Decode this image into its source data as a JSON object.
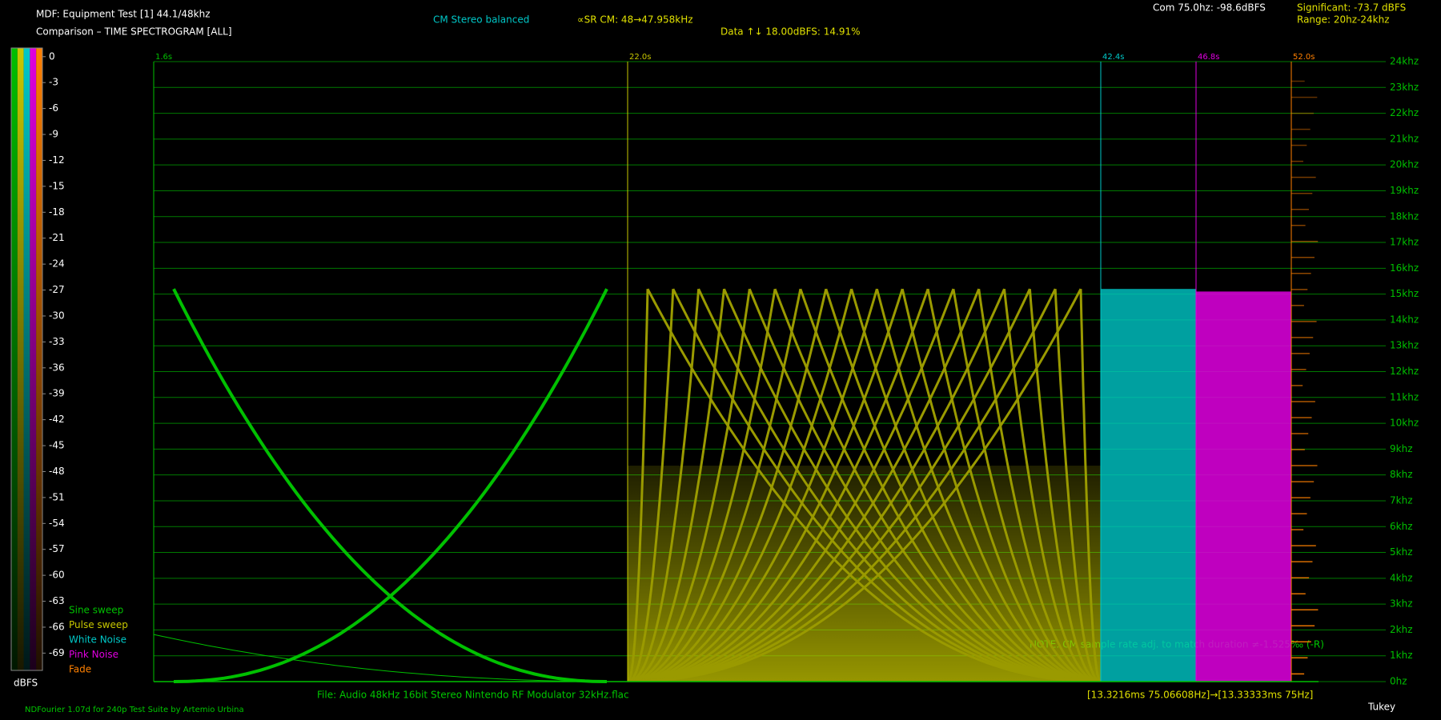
{
  "chart_data": {
    "type": "spectrogram",
    "title": "MDF: Equipment Test [1] 44.1/48khz",
    "subtitle": "Comparison – TIME SPECTROGRAM [ALL]",
    "annotations": [
      {
        "text": "CM Stereo balanced",
        "color": "#00c8c8"
      },
      {
        "text": "∝SR CM: 48→47.958kHz",
        "color": "#e0e000"
      },
      {
        "text": "Data ↑↓ 18.00dBFS: 14.91%",
        "color": "#e0e000"
      },
      {
        "text": "Com 75.0hz: -98.6dBFS",
        "color": "#ffffff"
      },
      {
        "text": "Significant: -73.7 dBFS",
        "color": "#e0e000"
      },
      {
        "text": "Range: 20hz-24khz",
        "color": "#e0e000"
      },
      {
        "text": "NOTE: CM sample rate adj. to match duration ≠-1.525‰ (-R)",
        "color": "#00c800"
      },
      {
        "text": "File: Audio   48kHz 16bit Stereo Nintendo RF Modulator 32kHz.flac",
        "color": "#00c800"
      },
      {
        "text": "[13.3216ms 75.06608Hz]→[13.33333ms 75Hz]",
        "color": "#e0e000"
      },
      {
        "text": "NDFourier 1.07d for 240p Test Suite by Artemio Urbina",
        "color": "#00c800"
      },
      {
        "text": "Tukey",
        "color": "#ffffff"
      }
    ],
    "categories": [
      "1.6s",
      "22.0s",
      "42.4s",
      "46.8s",
      "52.0s"
    ],
    "series": [
      {
        "name": "Sine sweep",
        "color": "#00c000",
        "max_khz": 15.2
      },
      {
        "name": "Pulse sweep",
        "color": "#c8c800",
        "max_khz": 15.2
      },
      {
        "name": "White Noise",
        "color": "#00c8c8",
        "max_khz": 15.2
      },
      {
        "name": "Pink Noise",
        "color": "#e000e0",
        "max_khz": 15.1
      },
      {
        "name": "Fade",
        "color": "#ff8000",
        "max_khz": 24
      }
    ],
    "ylim": [
      0,
      24
    ],
    "yticks": [
      {
        "value": 0,
        "label": "0hz"
      },
      {
        "value": 1,
        "label": "1khz"
      },
      {
        "value": 2,
        "label": "2khz"
      },
      {
        "value": 3,
        "label": "3khz"
      },
      {
        "value": 4,
        "label": "4khz"
      },
      {
        "value": 5,
        "label": "5khz"
      },
      {
        "value": 6,
        "label": "6khz"
      },
      {
        "value": 7,
        "label": "7khz"
      },
      {
        "value": 8,
        "label": "8khz"
      },
      {
        "value": 9,
        "label": "9khz"
      },
      {
        "value": 10,
        "label": "10khz"
      },
      {
        "value": 11,
        "label": "11khz"
      },
      {
        "value": 12,
        "label": "12khz"
      },
      {
        "value": 13,
        "label": "13khz"
      },
      {
        "value": 14,
        "label": "14khz"
      },
      {
        "value": 15,
        "label": "15khz"
      },
      {
        "value": 16,
        "label": "16khz"
      },
      {
        "value": 17,
        "label": "17khz"
      },
      {
        "value": 18,
        "label": "18khz"
      },
      {
        "value": 19,
        "label": "19khz"
      },
      {
        "value": 20,
        "label": "20khz"
      },
      {
        "value": 21,
        "label": "21khz"
      },
      {
        "value": 22,
        "label": "22khz"
      },
      {
        "value": 23,
        "label": "23khz"
      },
      {
        "value": 24,
        "label": "24khz"
      }
    ],
    "grid": true,
    "colorbar_label": "dBFS",
    "clim": [
      1,
      -71
    ],
    "colorbar_ticks": [
      0,
      -3,
      -6,
      -9,
      -12,
      -15,
      -18,
      -21,
      -24,
      -27,
      -30,
      -33,
      -36,
      -39,
      -42,
      -45,
      -48,
      -51,
      -54,
      -57,
      -60,
      -63,
      -66,
      -69
    ]
  }
}
